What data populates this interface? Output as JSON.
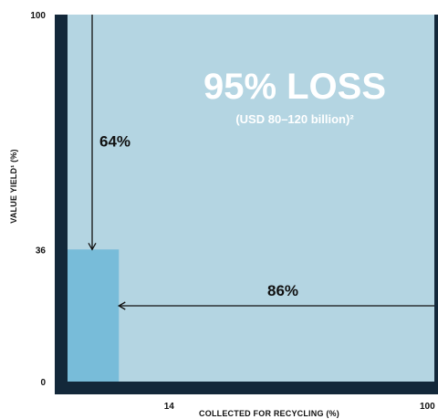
{
  "chart_data": {
    "type": "area",
    "xlabel": "COLLECTED FOR RECYCLING (%)",
    "ylabel": "VALUE YIELD¹ (%)",
    "xlim": [
      0,
      100
    ],
    "ylim": [
      0,
      100
    ],
    "x_ticks": [
      "14",
      "100"
    ],
    "y_ticks": [
      "100",
      "36",
      "0"
    ],
    "regions": [
      {
        "name": "recycled",
        "x": [
          0,
          14
        ],
        "y": [
          0,
          36
        ],
        "color": "#78bcd9"
      },
      {
        "name": "total",
        "x": [
          0,
          100
        ],
        "y": [
          0,
          100
        ],
        "color": "#b4d5e2"
      }
    ],
    "annotations": [
      {
        "text": "64%",
        "arrow": "vertical",
        "from_y": 100,
        "to_y": 36,
        "at_x": 7
      },
      {
        "text": "86%",
        "arrow": "horizontal",
        "from_x": 100,
        "to_x": 14,
        "at_y": 22
      }
    ],
    "headline": "95% LOSS",
    "subheadline": "(USD 80–120 billion)²"
  },
  "colors": {
    "frame": "#13283a",
    "background_area": "#b4d5e2",
    "recycled_area": "#78bcd9",
    "arrow": "#111111",
    "headline": "#ffffff"
  }
}
